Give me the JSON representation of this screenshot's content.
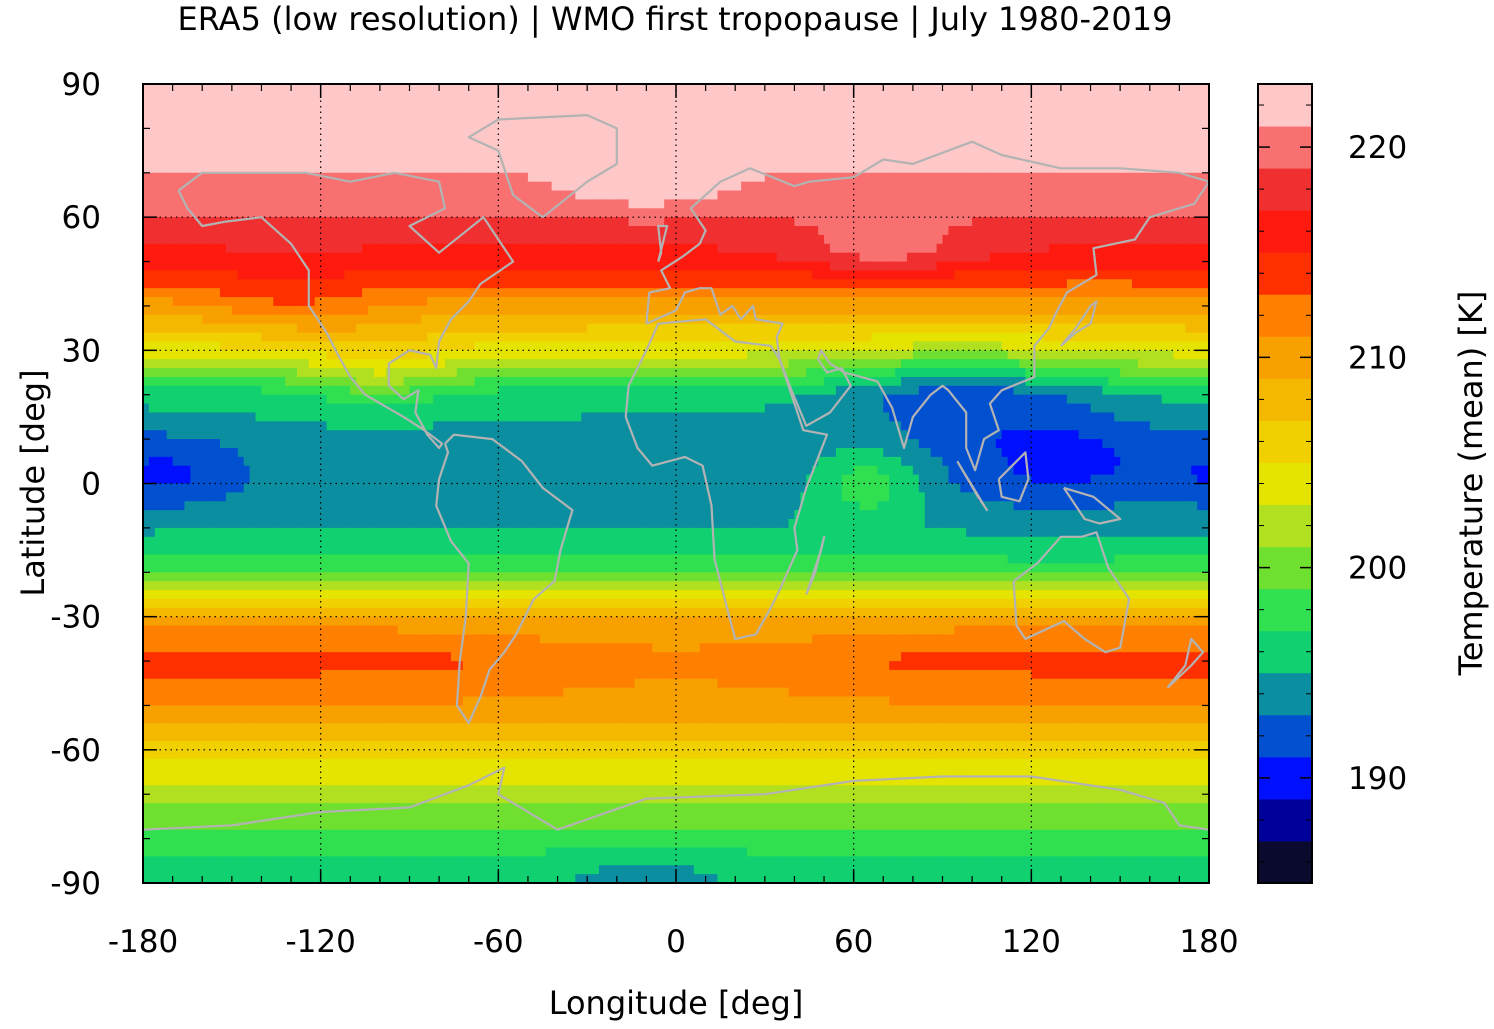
{
  "chart_data": {
    "type": "heatmap",
    "title": "ERA5 (low resolution) | WMO first tropopause | July 1980-2019",
    "xlabel": "Longitude [deg]",
    "ylabel": "Latitude [deg]",
    "colorbar_label": "Temperature (mean) [K]",
    "xlim": [
      -180,
      180
    ],
    "ylim": [
      -90,
      90
    ],
    "x_ticks": [
      -180,
      -120,
      -60,
      0,
      60,
      120,
      180
    ],
    "y_ticks": [
      90,
      60,
      30,
      0,
      -30,
      -60,
      -90
    ],
    "x_tick_labels": [
      "-180",
      "-120",
      "-60",
      "0",
      "60",
      "120",
      "180"
    ],
    "y_tick_labels": [
      "90",
      "60",
      "30",
      "0",
      "-30",
      "-60",
      "-90"
    ],
    "grid": true,
    "coastlines": true,
    "coastline_color": "#b3b3b3",
    "colorbar": {
      "range": [
        185,
        223
      ],
      "ticks": [
        190,
        200,
        210,
        220
      ],
      "tick_labels": [
        "190",
        "200",
        "210",
        "220"
      ],
      "levels": [
        {
          "from": 185,
          "to": 187,
          "color": "#0a0a2e"
        },
        {
          "from": 187,
          "to": 189,
          "color": "#00009a"
        },
        {
          "from": 189,
          "to": 191,
          "color": "#0010ff"
        },
        {
          "from": 191,
          "to": 193,
          "color": "#0050d0"
        },
        {
          "from": 193,
          "to": 195,
          "color": "#0a8ea0"
        },
        {
          "from": 195,
          "to": 197,
          "color": "#10d070"
        },
        {
          "from": 197,
          "to": 199,
          "color": "#30e050"
        },
        {
          "from": 199,
          "to": 201,
          "color": "#70e030"
        },
        {
          "from": 201,
          "to": 203,
          "color": "#b0e020"
        },
        {
          "from": 203,
          "to": 205,
          "color": "#e4e400"
        },
        {
          "from": 205,
          "to": 207,
          "color": "#f0d000"
        },
        {
          "from": 207,
          "to": 209,
          "color": "#f4b800"
        },
        {
          "from": 209,
          "to": 211,
          "color": "#f8a000"
        },
        {
          "from": 211,
          "to": 213,
          "color": "#ff8000"
        },
        {
          "from": 213,
          "to": 215,
          "color": "#ff3000"
        },
        {
          "from": 215,
          "to": 217,
          "color": "#ff1a10"
        },
        {
          "from": 217,
          "to": 219,
          "color": "#f03030"
        },
        {
          "from": 219,
          "to": 221,
          "color": "#f87070"
        },
        {
          "from": 221,
          "to": 223,
          "color": "#ffc8c8"
        }
      ]
    },
    "zonal_mean_temperature_K": {
      "latitudes": [
        -90,
        -80,
        -70,
        -60,
        -50,
        -40,
        -30,
        -20,
        -10,
        0,
        10,
        20,
        30,
        40,
        50,
        60,
        70,
        80,
        90
      ],
      "values": [
        196,
        198,
        202,
        206,
        211,
        214,
        210,
        198,
        195,
        194,
        194,
        196,
        204,
        210,
        216,
        219,
        221,
        223,
        223
      ]
    }
  }
}
